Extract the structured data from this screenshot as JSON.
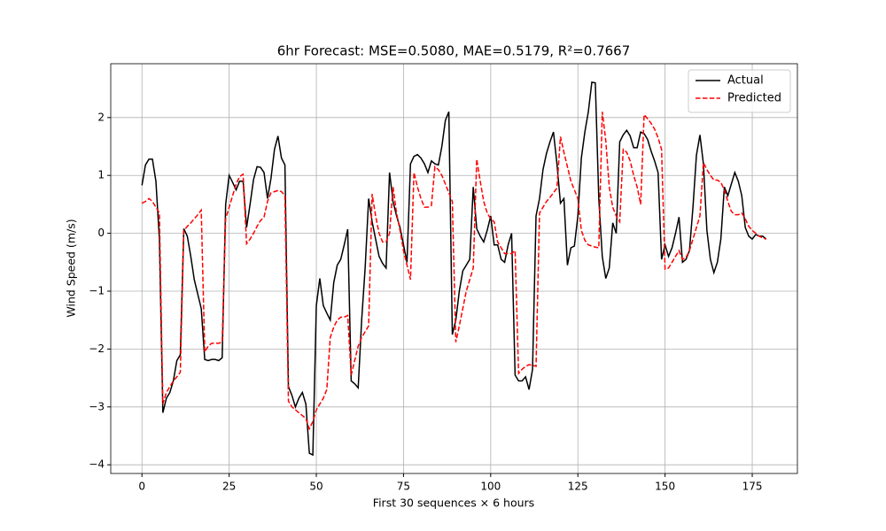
{
  "chart_data": {
    "type": "line",
    "title": "6hr Forecast: MSE=0.5080, MAE=0.5179, R²=0.7667",
    "xlabel": "First 30 sequences × 6 hours",
    "ylabel": "Wind Speed (m/s)",
    "x": [
      0,
      1,
      2,
      3,
      4,
      5,
      6,
      7,
      8,
      9,
      10,
      11,
      12,
      13,
      14,
      15,
      16,
      17,
      18,
      19,
      20,
      21,
      22,
      23,
      24,
      25,
      26,
      27,
      28,
      29,
      30,
      31,
      32,
      33,
      34,
      35,
      36,
      37,
      38,
      39,
      40,
      41,
      42,
      43,
      44,
      45,
      46,
      47,
      48,
      49,
      50,
      51,
      52,
      53,
      54,
      55,
      56,
      57,
      58,
      59,
      60,
      61,
      62,
      63,
      64,
      65,
      66,
      67,
      68,
      69,
      70,
      71,
      72,
      73,
      74,
      75,
      76,
      77,
      78,
      79,
      80,
      81,
      82,
      83,
      84,
      85,
      86,
      87,
      88,
      89,
      90,
      91,
      92,
      93,
      94,
      95,
      96,
      97,
      98,
      99,
      100,
      101,
      102,
      103,
      104,
      105,
      106,
      107,
      108,
      109,
      110,
      111,
      112,
      113,
      114,
      115,
      116,
      117,
      118,
      119,
      120,
      121,
      122,
      123,
      124,
      125,
      126,
      127,
      128,
      129,
      130,
      131,
      132,
      133,
      134,
      135,
      136,
      137,
      138,
      139,
      140,
      141,
      142,
      143,
      144,
      145,
      146,
      147,
      148,
      149,
      150,
      151,
      152,
      153,
      154,
      155,
      156,
      157,
      158,
      159,
      160,
      161,
      162,
      163,
      164,
      165,
      166,
      167,
      168,
      169,
      170,
      171,
      172,
      173,
      174,
      175,
      176,
      177,
      178,
      179
    ],
    "series": [
      {
        "name": "Actual",
        "color": "#000000",
        "dash": "solid",
        "values": [
          0.83,
          1.18,
          1.28,
          1.28,
          0.9,
          -0.1,
          -3.1,
          -2.85,
          -2.75,
          -2.55,
          -2.2,
          -2.1,
          0.08,
          -0.05,
          -0.4,
          -0.8,
          -1.05,
          -1.3,
          -2.18,
          -2.2,
          -2.18,
          -2.18,
          -2.2,
          -2.15,
          0.5,
          1.0,
          0.88,
          0.75,
          0.9,
          0.9,
          0.1,
          0.5,
          0.93,
          1.15,
          1.14,
          1.05,
          0.6,
          0.95,
          1.45,
          1.68,
          1.3,
          1.18,
          -2.65,
          -2.8,
          -3.0,
          -2.85,
          -2.75,
          -2.95,
          -3.8,
          -3.83,
          -1.25,
          -0.78,
          -1.25,
          -1.38,
          -1.5,
          -0.85,
          -0.55,
          -0.45,
          -0.2,
          0.07,
          -2.55,
          -2.6,
          -2.67,
          -1.5,
          -0.6,
          0.6,
          0.2,
          -0.1,
          -0.4,
          -0.52,
          -0.6,
          1.05,
          0.55,
          0.3,
          0.1,
          -0.2,
          -0.5,
          1.2,
          1.33,
          1.36,
          1.3,
          1.2,
          1.05,
          1.25,
          1.2,
          1.18,
          1.5,
          1.95,
          2.1,
          -1.75,
          -1.5,
          -1.0,
          -0.65,
          -0.55,
          -0.45,
          0.8,
          0.08,
          -0.05,
          -0.15,
          0.05,
          0.3,
          -0.2,
          -0.2,
          -0.45,
          -0.5,
          -0.2,
          0.0,
          -2.45,
          -2.55,
          -2.55,
          -2.48,
          -2.7,
          -2.35,
          0.3,
          0.6,
          1.1,
          1.38,
          1.58,
          1.75,
          1.2,
          0.52,
          0.6,
          -0.55,
          -0.25,
          -0.22,
          0.3,
          1.3,
          1.75,
          2.1,
          2.61,
          2.6,
          0.6,
          -0.4,
          -0.78,
          -0.6,
          0.18,
          0.0,
          1.58,
          1.7,
          1.78,
          1.68,
          1.48,
          1.48,
          1.75,
          1.72,
          1.62,
          1.42,
          1.25,
          1.05,
          -0.45,
          -0.2,
          -0.4,
          -0.25,
          0.0,
          0.28,
          -0.5,
          -0.45,
          -0.3,
          0.45,
          1.35,
          1.7,
          1.2,
          0.05,
          -0.45,
          -0.68,
          -0.5,
          -0.1,
          0.8,
          0.65,
          0.85,
          1.05,
          0.9,
          0.65,
          0.1,
          -0.05,
          -0.1,
          -0.02,
          -0.05,
          -0.05,
          -0.1
        ]
      },
      {
        "name": "Predicted",
        "color": "#ff0000",
        "dash": "dashed",
        "values": [
          0.52,
          0.55,
          0.6,
          0.55,
          0.45,
          0.35,
          -2.95,
          -2.75,
          -2.65,
          -2.55,
          -2.48,
          -2.4,
          0.05,
          0.12,
          0.18,
          0.25,
          0.32,
          0.4,
          -2.05,
          -1.95,
          -1.9,
          -1.9,
          -1.9,
          -1.88,
          0.25,
          0.45,
          0.65,
          0.85,
          0.98,
          1.02,
          -0.18,
          -0.1,
          0.0,
          0.12,
          0.22,
          0.28,
          0.55,
          0.7,
          0.72,
          0.74,
          0.72,
          0.65,
          -2.9,
          -3.0,
          -3.05,
          -3.1,
          -3.15,
          -3.2,
          -3.38,
          -3.25,
          -3.05,
          -2.95,
          -2.85,
          -2.7,
          -1.8,
          -1.62,
          -1.5,
          -1.45,
          -1.45,
          -1.42,
          -2.45,
          -2.2,
          -1.95,
          -1.8,
          -1.7,
          -1.6,
          0.68,
          0.3,
          0.0,
          -0.15,
          -0.15,
          0.0,
          0.8,
          0.35,
          0.05,
          -0.3,
          -0.55,
          -0.8,
          1.05,
          0.8,
          0.6,
          0.45,
          0.45,
          0.48,
          1.15,
          1.1,
          1.0,
          0.85,
          0.7,
          0.55,
          -1.88,
          -1.6,
          -1.3,
          -1.0,
          -0.8,
          -0.6,
          1.28,
          0.9,
          0.55,
          0.35,
          0.25,
          0.2,
          -0.15,
          -0.25,
          -0.35,
          -0.35,
          -0.35,
          -0.3,
          -2.42,
          -2.35,
          -2.3,
          -2.27,
          -2.28,
          -2.3,
          0.35,
          0.45,
          0.55,
          0.62,
          0.7,
          0.78,
          1.67,
          1.4,
          1.15,
          0.9,
          0.75,
          0.6,
          0.05,
          -0.12,
          -0.2,
          -0.22,
          -0.24,
          -0.25,
          2.1,
          1.6,
          0.8,
          0.45,
          0.3,
          0.2,
          1.45,
          1.4,
          1.25,
          1.0,
          0.8,
          0.5,
          2.05,
          1.98,
          1.9,
          1.8,
          1.65,
          1.45,
          -0.62,
          -0.6,
          -0.5,
          -0.4,
          -0.3,
          -0.45,
          -0.42,
          -0.3,
          -0.1,
          0.1,
          0.3,
          1.22,
          1.1,
          1.0,
          0.92,
          0.92,
          0.88,
          0.75,
          0.55,
          0.38,
          0.32,
          0.32,
          0.35,
          0.25,
          0.12,
          0.05,
          0.0,
          -0.05,
          -0.08,
          -0.1
        ]
      }
    ],
    "xlim": [
      -8.95,
      187.95
    ],
    "ylim": [
      -4.15,
      2.93
    ],
    "xticks": [
      0,
      25,
      50,
      75,
      100,
      125,
      150,
      175
    ],
    "yticks": [
      {
        "value": -4,
        "label": "−4"
      },
      {
        "value": -3,
        "label": "−3"
      },
      {
        "value": -2,
        "label": "−2"
      },
      {
        "value": -1,
        "label": "−1"
      },
      0,
      1,
      2
    ],
    "grid": true,
    "legend": "upper right"
  }
}
